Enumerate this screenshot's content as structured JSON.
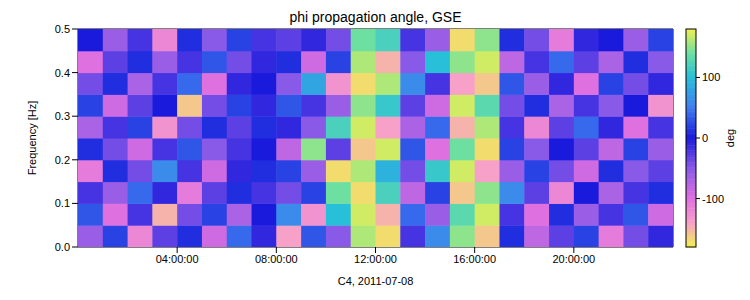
{
  "chart_data": {
    "type": "heatmap",
    "title": "phi propagation angle, GSE",
    "x_label": "C4, 2011-07-08",
    "y_label": "Frequency [Hz]",
    "xlim": [
      0,
      24
    ],
    "xticks": [
      {
        "value": 4,
        "label": "04:00:00"
      },
      {
        "value": 8,
        "label": "08:00:00"
      },
      {
        "value": 12,
        "label": "12:00:00"
      },
      {
        "value": 16,
        "label": "16:00:00"
      },
      {
        "value": 20,
        "label": "20:00:00"
      }
    ],
    "ylim": [
      0,
      0.5
    ],
    "yticks": [
      {
        "value": 0,
        "label": "0.0"
      },
      0.1,
      0.2,
      0.3,
      0.4,
      0.5
    ],
    "grid": false,
    "heatmap": {
      "x": [
        0.5,
        1.5,
        2.5,
        3.5,
        4.5,
        5.5,
        6.5,
        7.5,
        8.5,
        9.5,
        10.5,
        11.5,
        12.5,
        13.5,
        14.5,
        15.5,
        16.5,
        17.5,
        18.5,
        19.5,
        20.5,
        21.5,
        22.5,
        23.5
      ],
      "y": [
        0.025,
        0.075,
        0.125,
        0.175,
        0.225,
        0.275,
        0.325,
        0.375,
        0.425,
        0.475
      ],
      "values": [
        [
          -60,
          20,
          -120,
          -30,
          10,
          -90,
          40,
          -10,
          -140,
          30,
          -50,
          160,
          -170,
          -20,
          60,
          150,
          -160,
          10,
          -80,
          -30,
          20,
          -110,
          -40,
          -10
        ],
        [
          30,
          -100,
          -20,
          -150,
          -40,
          20,
          -70,
          0,
          60,
          -130,
          100,
          170,
          -150,
          40,
          -60,
          130,
          170,
          -20,
          -100,
          10,
          -60,
          -20,
          30,
          -90
        ],
        [
          -20,
          -60,
          40,
          -10,
          -110,
          -30,
          10,
          -20,
          -40,
          20,
          140,
          -170,
          120,
          -80,
          20,
          -160,
          150,
          60,
          -30,
          -120,
          0,
          -70,
          -20,
          10
        ],
        [
          -110,
          10,
          -40,
          60,
          -20,
          -90,
          -10,
          10,
          20,
          -60,
          -170,
          160,
          90,
          -40,
          110,
          170,
          -140,
          -60,
          20,
          -40,
          -90,
          10,
          -50,
          -30
        ],
        [
          10,
          -40,
          -90,
          -20,
          30,
          -50,
          -20,
          0,
          -80,
          150,
          -30,
          -160,
          170,
          30,
          -100,
          140,
          -170,
          20,
          -50,
          0,
          -30,
          -80,
          20,
          -60
        ],
        [
          -70,
          -20,
          20,
          -130,
          -40,
          10,
          -30,
          10,
          -10,
          -50,
          120,
          170,
          -140,
          -70,
          40,
          -150,
          160,
          -20,
          -120,
          -30,
          40,
          -10,
          -100,
          -20
        ],
        [
          20,
          -90,
          -30,
          0,
          -160,
          -40,
          20,
          -10,
          30,
          -20,
          -60,
          150,
          110,
          -30,
          -90,
          170,
          130,
          -40,
          10,
          -70,
          -20,
          -50,
          0,
          -130
        ],
        [
          -40,
          10,
          -70,
          -20,
          40,
          -100,
          -10,
          0,
          -50,
          80,
          -130,
          -170,
          160,
          60,
          -20,
          -140,
          -160,
          30,
          -60,
          -10,
          -100,
          20,
          -40,
          -10
        ],
        [
          -100,
          -30,
          10,
          -60,
          -20,
          30,
          -40,
          -10,
          10,
          -90,
          20,
          160,
          -150,
          -50,
          100,
          150,
          170,
          -80,
          -20,
          40,
          -30,
          -70,
          10,
          -50
        ],
        [
          0,
          -60,
          -20,
          -120,
          10,
          -50,
          20,
          -20,
          -30,
          -10,
          -40,
          140,
          120,
          -20,
          -60,
          -170,
          150,
          10,
          -40,
          -110,
          -10,
          0,
          -60,
          20
        ]
      ]
    },
    "colorbar": {
      "range": [
        -180,
        180
      ],
      "ticks": [
        -100,
        0,
        100
      ],
      "label": "deg"
    }
  }
}
